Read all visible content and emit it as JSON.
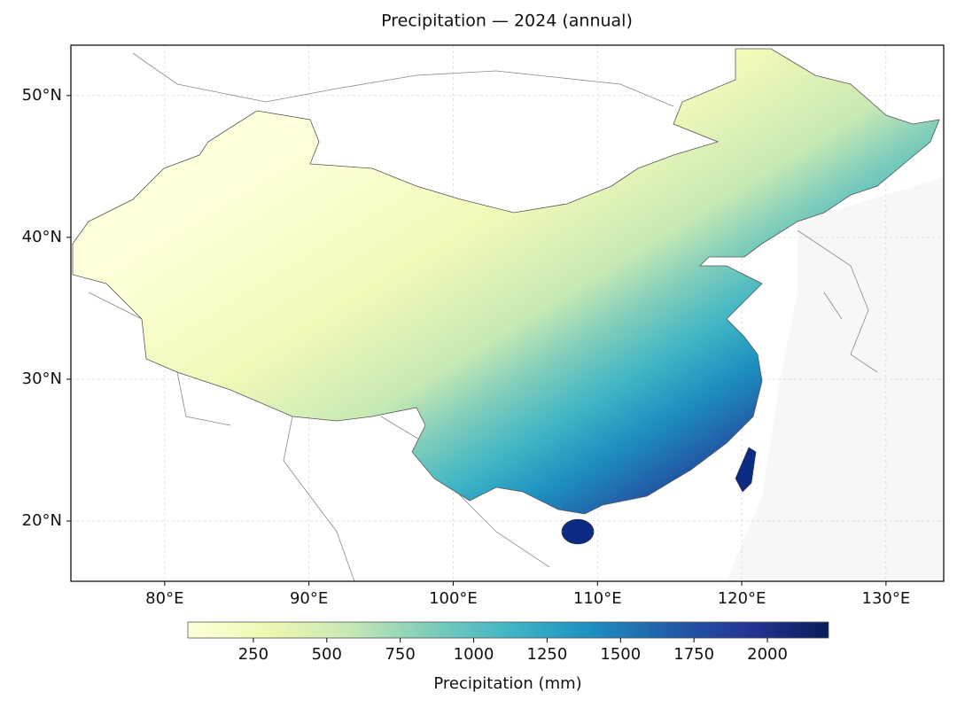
{
  "chart_data": {
    "type": "map",
    "title": "Precipitation — 2024 (annual)",
    "xlim": [
      73.5,
      134
    ],
    "ylim": [
      15.75,
      53.55
    ],
    "xticks": [
      {
        "value": 80,
        "label": "80°E"
      },
      {
        "value": 90,
        "label": "90°E"
      },
      {
        "value": 100,
        "label": "100°E"
      },
      {
        "value": 110,
        "label": "110°E"
      },
      {
        "value": 120,
        "label": "120°E"
      },
      {
        "value": 130,
        "label": "130°E"
      }
    ],
    "yticks": [
      {
        "value": 20,
        "label": "20°N"
      },
      {
        "value": 30,
        "label": "30°N"
      },
      {
        "value": 40,
        "label": "40°N"
      },
      {
        "value": 50,
        "label": "50°N"
      }
    ],
    "grid": true,
    "colorbar": {
      "label": "Precipitation (mm)",
      "lim": [
        27,
        2208
      ],
      "ticks": [
        250,
        500,
        750,
        1000,
        1250,
        1500,
        1750,
        2000
      ],
      "colormap": "YlGnBu"
    }
  }
}
